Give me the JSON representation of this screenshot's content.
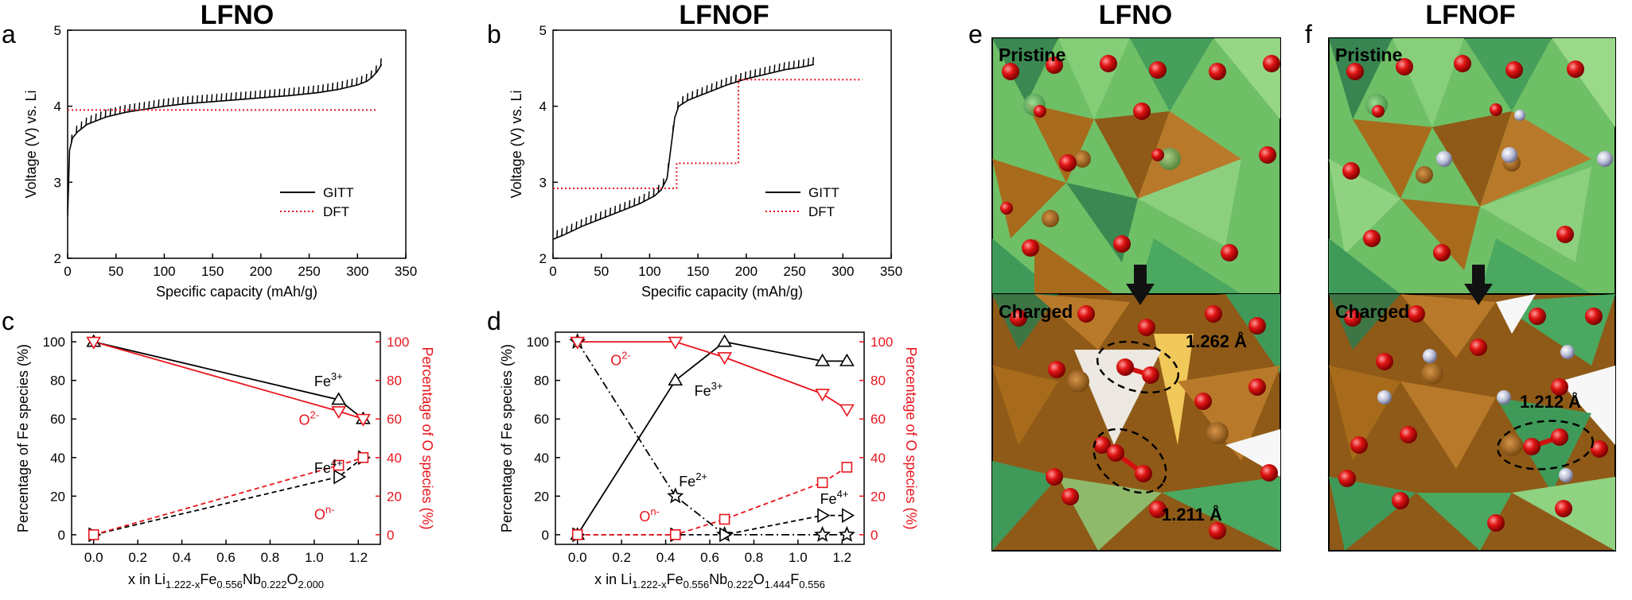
{
  "panel_titles": {
    "a": "LFNO",
    "b": "LFNOF",
    "e": "LFNO",
    "f": "LFNOF"
  },
  "panel_letters": {
    "a": "a",
    "b": "b",
    "c": "c",
    "d": "d",
    "e": "e",
    "f": "f"
  },
  "colors": {
    "black": "#000000",
    "red": "#e8141c",
    "fe_polyhedra": "#a86b1c",
    "li_polyhedra": "#5fb35a",
    "oxygen": "#e01414",
    "fluorine": "#b9bdd6"
  },
  "chart_data": [
    {
      "id": "a",
      "type": "line",
      "title": "LFNO",
      "xlabel": "Specific capacity (mAh/g)",
      "ylabel": "Voltage (V) vs. Li",
      "xlim": [
        0,
        350
      ],
      "ylim": [
        2,
        5
      ],
      "xticks": [
        0,
        50,
        100,
        150,
        200,
        250,
        300,
        350
      ],
      "yticks": [
        2,
        3,
        4,
        5
      ],
      "legend": {
        "placement": "lower-right",
        "entries": [
          "GITT",
          "DFT"
        ]
      },
      "series": [
        {
          "name": "GITT",
          "style": "solid-black",
          "pulse_top": 0.1,
          "x": [
            0,
            2,
            5,
            10,
            20,
            40,
            60,
            80,
            100,
            120,
            150,
            180,
            200,
            230,
            260,
            280,
            300,
            310,
            315,
            320,
            325
          ],
          "y": [
            2.55,
            3.42,
            3.58,
            3.66,
            3.76,
            3.86,
            3.92,
            3.96,
            4.0,
            4.03,
            4.06,
            4.09,
            4.11,
            4.14,
            4.18,
            4.22,
            4.28,
            4.33,
            4.38,
            4.45,
            4.55
          ]
        },
        {
          "name": "DFT",
          "style": "dotted-red",
          "x": [
            0,
            320
          ],
          "y": [
            3.95,
            3.95
          ]
        }
      ]
    },
    {
      "id": "b",
      "type": "line",
      "title": "LFNOF",
      "xlabel": "Specific capacity (mAh/g)",
      "ylabel": "Voltage (V) vs. Li",
      "xlim": [
        0,
        350
      ],
      "ylim": [
        2,
        5
      ],
      "xticks": [
        0,
        50,
        100,
        150,
        200,
        250,
        300,
        350
      ],
      "yticks": [
        2,
        3,
        4,
        5
      ],
      "legend": {
        "placement": "lower-right",
        "entries": [
          "GITT",
          "DFT"
        ]
      },
      "series": [
        {
          "name": "GITT",
          "style": "solid-black",
          "pulse_top": 0.1,
          "x": [
            0,
            10,
            30,
            50,
            70,
            90,
            105,
            112,
            118,
            122,
            126,
            130,
            140,
            160,
            180,
            200,
            220,
            240,
            260,
            270
          ],
          "y": [
            2.25,
            2.3,
            2.42,
            2.52,
            2.62,
            2.72,
            2.82,
            2.9,
            3.05,
            3.45,
            3.85,
            4.0,
            4.08,
            4.18,
            4.28,
            4.36,
            4.42,
            4.48,
            4.52,
            4.55
          ]
        },
        {
          "name": "DFT",
          "style": "dotted-red",
          "x": [
            0,
            128,
            128,
            192,
            192,
            320
          ],
          "y": [
            2.92,
            2.92,
            3.25,
            3.25,
            4.35,
            4.35
          ]
        }
      ]
    },
    {
      "id": "c",
      "type": "line",
      "xlabel": "x in Li1.222-xFe0.556Nb0.222O2.000",
      "ylabel": "Percentage of Fe species (%)",
      "ylabel_right": "Percentage of O species (%)",
      "xlim": [
        -0.1,
        1.3
      ],
      "ylim": [
        -5,
        105
      ],
      "xticks": [
        0.0,
        0.2,
        0.4,
        0.6,
        0.8,
        1.0,
        1.2
      ],
      "yticks": [
        0,
        20,
        40,
        60,
        80,
        100
      ],
      "series": [
        {
          "name": "Fe3+",
          "axis": "left",
          "line": "solid",
          "color": "black",
          "marker": "triangle-up",
          "x": [
            0.0,
            1.111,
            1.222
          ],
          "y": [
            100,
            70,
            60
          ]
        },
        {
          "name": "Fe4+",
          "axis": "left",
          "line": "dashed",
          "color": "black",
          "marker": "triangle-right",
          "x": [
            0.0,
            1.111,
            1.222
          ],
          "y": [
            0,
            30,
            40
          ]
        },
        {
          "name": "O2-",
          "axis": "right",
          "line": "solid",
          "color": "red",
          "marker": "triangle-down",
          "x": [
            0.0,
            1.111,
            1.222
          ],
          "y": [
            100,
            64,
            60
          ]
        },
        {
          "name": "On-",
          "axis": "right",
          "line": "dashed",
          "color": "red",
          "marker": "square",
          "x": [
            0.0,
            1.111,
            1.222
          ],
          "y": [
            0,
            36,
            40
          ]
        }
      ],
      "annotations": [
        {
          "base": "Fe",
          "sup": "3+",
          "color": "black",
          "x": 1.0,
          "y": 77
        },
        {
          "base": "O",
          "sup": "2-",
          "color": "red",
          "x": 0.93,
          "y": 57
        },
        {
          "base": "Fe",
          "sup": "4+",
          "color": "black",
          "x": 1.0,
          "y": 32
        },
        {
          "base": "O",
          "sup": "n-",
          "color": "red",
          "x": 1.0,
          "y": 8
        }
      ]
    },
    {
      "id": "d",
      "type": "line",
      "xlabel": "x in Li1.222-xFe0.556Nb0.222O1.444F0.556",
      "ylabel": "Percentage of Fe species (%)",
      "ylabel_right": "Percentage of O species (%)",
      "xlim": [
        -0.1,
        1.3
      ],
      "ylim": [
        -5,
        105
      ],
      "xticks": [
        0.0,
        0.2,
        0.4,
        0.6,
        0.8,
        1.0,
        1.2
      ],
      "yticks": [
        0,
        20,
        40,
        60,
        80,
        100
      ],
      "series": [
        {
          "name": "Fe3+",
          "axis": "left",
          "line": "solid",
          "color": "black",
          "marker": "triangle-up",
          "x": [
            0.0,
            0.444,
            0.667,
            1.111,
            1.222
          ],
          "y": [
            0,
            80,
            100,
            90,
            90
          ]
        },
        {
          "name": "Fe2+",
          "axis": "left",
          "line": "dashdot",
          "color": "black",
          "marker": "star",
          "x": [
            0.0,
            0.444,
            0.667,
            1.111,
            1.222
          ],
          "y": [
            100,
            20,
            0,
            0,
            0
          ]
        },
        {
          "name": "Fe4+",
          "axis": "left",
          "line": "dashed",
          "color": "black",
          "marker": "triangle-right",
          "x": [
            0.0,
            0.444,
            0.667,
            1.111,
            1.222
          ],
          "y": [
            0,
            0,
            0,
            10,
            10
          ]
        },
        {
          "name": "O2-",
          "axis": "right",
          "line": "solid",
          "color": "red",
          "marker": "triangle-down",
          "x": [
            0.0,
            0.444,
            0.667,
            1.111,
            1.222
          ],
          "y": [
            100,
            100,
            92,
            73,
            65
          ]
        },
        {
          "name": "On-",
          "axis": "right",
          "line": "dashed",
          "color": "red",
          "marker": "square",
          "x": [
            0.0,
            0.444,
            0.667,
            1.111,
            1.222
          ],
          "y": [
            0,
            0,
            8,
            27,
            35
          ]
        }
      ],
      "annotations": [
        {
          "base": "O",
          "sup": "2-",
          "color": "red",
          "x": 0.15,
          "y": 88
        },
        {
          "base": "Fe",
          "sup": "3+",
          "color": "black",
          "x": 0.53,
          "y": 72
        },
        {
          "base": "Fe",
          "sup": "2+",
          "color": "black",
          "x": 0.46,
          "y": 25
        },
        {
          "base": "O",
          "sup": "n-",
          "color": "red",
          "x": 0.28,
          "y": 7
        },
        {
          "base": "Fe",
          "sup": "4+",
          "color": "black",
          "x": 1.1,
          "y": 16
        }
      ]
    }
  ],
  "xlabels_rich": {
    "c": [
      {
        "t": "x in Li"
      },
      {
        "t": "1.222-x",
        "sub": true
      },
      {
        "t": "Fe"
      },
      {
        "t": "0.556",
        "sub": true
      },
      {
        "t": "Nb"
      },
      {
        "t": "0.222",
        "sub": true
      },
      {
        "t": "O"
      },
      {
        "t": "2.000",
        "sub": true
      }
    ],
    "d": [
      {
        "t": "x in Li"
      },
      {
        "t": "1.222-x",
        "sub": true
      },
      {
        "t": "Fe"
      },
      {
        "t": "0.556",
        "sub": true
      },
      {
        "t": "Nb"
      },
      {
        "t": "0.222",
        "sub": true
      },
      {
        "t": "O"
      },
      {
        "t": "1.444",
        "sub": true
      },
      {
        "t": "F"
      },
      {
        "t": "0.556",
        "sub": true
      }
    ]
  },
  "structures": {
    "e": {
      "pristine_label": "Pristine",
      "charged_label": "Charged",
      "bond_labels": [
        "1.262 Å",
        "1.211 Å"
      ]
    },
    "f": {
      "pristine_label": "Pristine",
      "charged_label": "Charged",
      "bond_labels": [
        "1.212 Å"
      ]
    }
  }
}
